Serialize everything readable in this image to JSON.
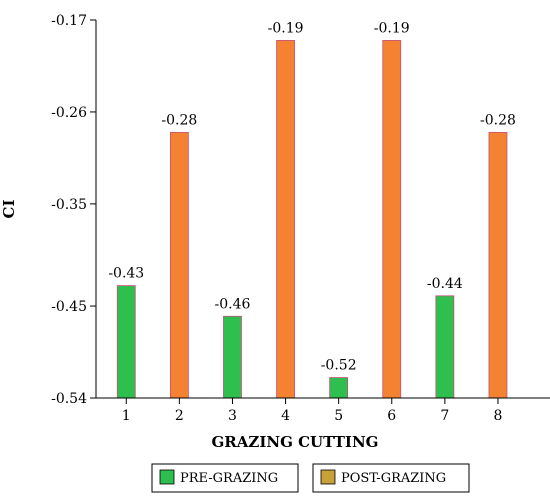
{
  "chart_data": {
    "type": "bar",
    "title": "",
    "xlabel": "GRAZING CUTTING",
    "ylabel": "CI",
    "ylim": [
      -0.54,
      -0.17
    ],
    "yticks": [
      "-0.17",
      "-0.26",
      "-0.35",
      "-0.45",
      "-0.54"
    ],
    "ytick_values": [
      -0.17,
      -0.26,
      -0.35,
      -0.45,
      -0.54
    ],
    "grid": false,
    "legend_position": "bottom",
    "bars": [
      {
        "x": "1",
        "value": -0.43,
        "label": "-0.43",
        "series": "PRE-GRAZING"
      },
      {
        "x": "2",
        "value": -0.28,
        "label": "-0.28",
        "series": "POST-GRAZING"
      },
      {
        "x": "3",
        "value": -0.46,
        "label": "-0.46",
        "series": "PRE-GRAZING"
      },
      {
        "x": "4",
        "value": -0.19,
        "label": "-0.19",
        "series": "POST-GRAZING"
      },
      {
        "x": "5",
        "value": -0.52,
        "label": "-0.52",
        "series": "PRE-GRAZING"
      },
      {
        "x": "6",
        "value": -0.19,
        "label": "-0.19",
        "series": "POST-GRAZING"
      },
      {
        "x": "7",
        "value": -0.44,
        "label": "-0.44",
        "series": "PRE-GRAZING"
      },
      {
        "x": "8",
        "value": -0.28,
        "label": "-0.28",
        "series": "POST-GRAZING"
      }
    ],
    "series": [
      {
        "name": "PRE-GRAZING",
        "color": "#2fbf4f",
        "legend_swatch": "#2fbf4f"
      },
      {
        "name": "POST-GRAZING",
        "color": "#f58231",
        "legend_swatch": "#c9a038"
      }
    ]
  }
}
